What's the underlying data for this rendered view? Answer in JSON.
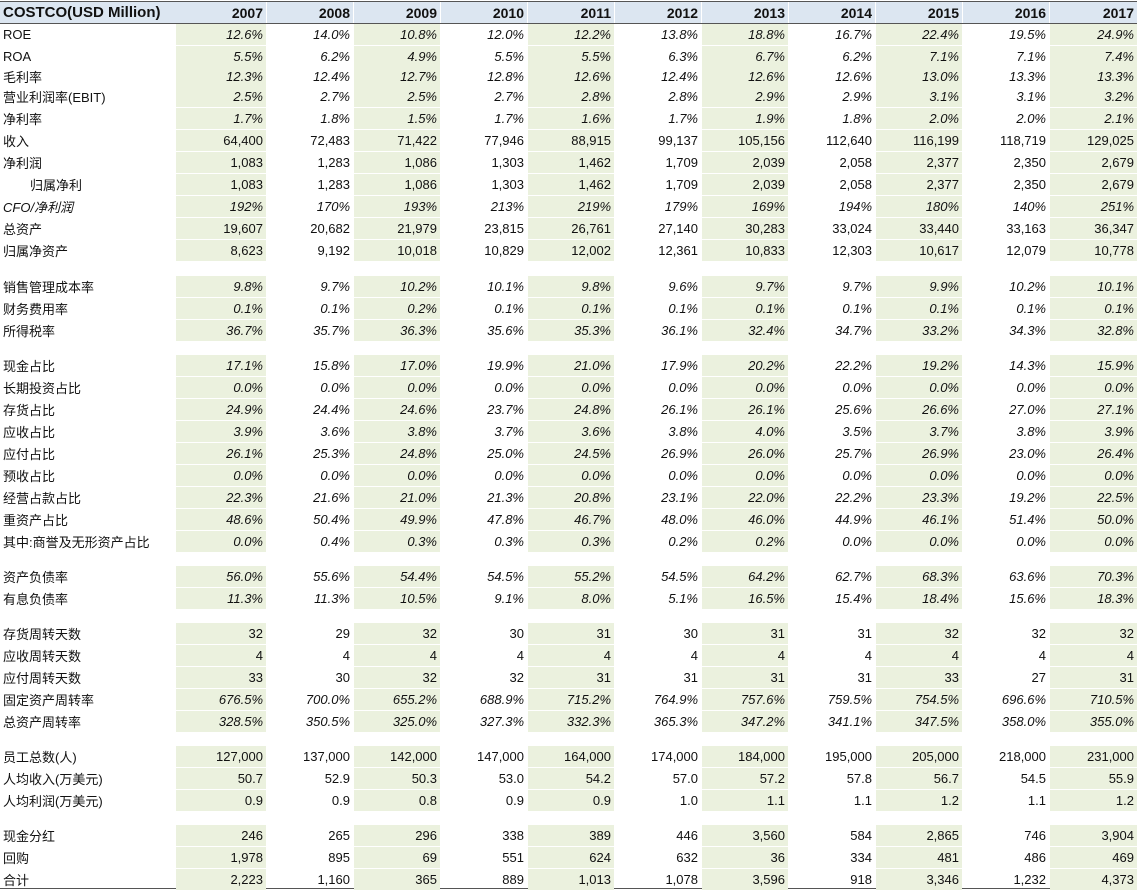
{
  "header": {
    "title": "COSTCO(USD Million)",
    "years": [
      "2007",
      "2008",
      "2009",
      "2010",
      "2011",
      "2012",
      "2013",
      "2014",
      "2015",
      "2016",
      "2017"
    ]
  },
  "rows": [
    {
      "label": "ROE",
      "italic": true,
      "values": [
        "12.6%",
        "14.0%",
        "10.8%",
        "12.0%",
        "12.2%",
        "13.8%",
        "18.8%",
        "16.7%",
        "22.4%",
        "19.5%",
        "24.9%"
      ]
    },
    {
      "label": "ROA",
      "italic": true,
      "values": [
        "5.5%",
        "6.2%",
        "4.9%",
        "5.5%",
        "5.5%",
        "6.3%",
        "6.7%",
        "6.2%",
        "7.1%",
        "7.1%",
        "7.4%"
      ]
    },
    {
      "label": "毛利率",
      "italic": true,
      "values": [
        "12.3%",
        "12.4%",
        "12.7%",
        "12.8%",
        "12.6%",
        "12.4%",
        "12.6%",
        "12.6%",
        "13.0%",
        "13.3%",
        "13.3%"
      ]
    },
    {
      "label": "营业利润率(EBIT)",
      "italic": true,
      "values": [
        "2.5%",
        "2.7%",
        "2.5%",
        "2.7%",
        "2.8%",
        "2.8%",
        "2.9%",
        "2.9%",
        "3.1%",
        "3.1%",
        "3.2%"
      ]
    },
    {
      "label": "净利率",
      "italic": true,
      "values": [
        "1.7%",
        "1.8%",
        "1.5%",
        "1.7%",
        "1.6%",
        "1.7%",
        "1.9%",
        "1.8%",
        "2.0%",
        "2.0%",
        "2.1%"
      ]
    },
    {
      "label": "收入",
      "italic": false,
      "values": [
        "64,400",
        "72,483",
        "71,422",
        "77,946",
        "88,915",
        "99,137",
        "105,156",
        "112,640",
        "116,199",
        "118,719",
        "129,025"
      ]
    },
    {
      "label": "净利润",
      "italic": false,
      "values": [
        "1,083",
        "1,283",
        "1,086",
        "1,303",
        "1,462",
        "1,709",
        "2,039",
        "2,058",
        "2,377",
        "2,350",
        "2,679"
      ]
    },
    {
      "label": "归属净利",
      "italic": false,
      "indent": true,
      "values": [
        "1,083",
        "1,283",
        "1,086",
        "1,303",
        "1,462",
        "1,709",
        "2,039",
        "2,058",
        "2,377",
        "2,350",
        "2,679"
      ]
    },
    {
      "label": "CFO/净利润",
      "italic": true,
      "labelItalic": true,
      "values": [
        "192%",
        "170%",
        "193%",
        "213%",
        "219%",
        "179%",
        "169%",
        "194%",
        "180%",
        "140%",
        "251%"
      ]
    },
    {
      "label": "总资产",
      "italic": false,
      "values": [
        "19,607",
        "20,682",
        "21,979",
        "23,815",
        "26,761",
        "27,140",
        "30,283",
        "33,024",
        "33,440",
        "33,163",
        "36,347"
      ]
    },
    {
      "label": "归属净资产",
      "italic": false,
      "values": [
        "8,623",
        "9,192",
        "10,018",
        "10,829",
        "12,002",
        "12,361",
        "10,833",
        "12,303",
        "10,617",
        "12,079",
        "10,778"
      ]
    },
    {
      "label": "销售管理成本率",
      "italic": true,
      "values": [
        "9.8%",
        "9.7%",
        "10.2%",
        "10.1%",
        "9.8%",
        "9.6%",
        "9.7%",
        "9.7%",
        "9.9%",
        "10.2%",
        "10.1%"
      ]
    },
    {
      "label": "财务费用率",
      "italic": true,
      "values": [
        "0.1%",
        "0.1%",
        "0.2%",
        "0.1%",
        "0.1%",
        "0.1%",
        "0.1%",
        "0.1%",
        "0.1%",
        "0.1%",
        "0.1%"
      ]
    },
    {
      "label": "所得税率",
      "italic": true,
      "values": [
        "36.7%",
        "35.7%",
        "36.3%",
        "35.6%",
        "35.3%",
        "36.1%",
        "32.4%",
        "34.7%",
        "33.2%",
        "34.3%",
        "32.8%"
      ]
    },
    {
      "label": "现金占比",
      "italic": true,
      "values": [
        "17.1%",
        "15.8%",
        "17.0%",
        "19.9%",
        "21.0%",
        "17.9%",
        "20.2%",
        "22.2%",
        "19.2%",
        "14.3%",
        "15.9%"
      ]
    },
    {
      "label": "长期投资占比",
      "italic": true,
      "values": [
        "0.0%",
        "0.0%",
        "0.0%",
        "0.0%",
        "0.0%",
        "0.0%",
        "0.0%",
        "0.0%",
        "0.0%",
        "0.0%",
        "0.0%"
      ]
    },
    {
      "label": "存货占比",
      "italic": true,
      "values": [
        "24.9%",
        "24.4%",
        "24.6%",
        "23.7%",
        "24.8%",
        "26.1%",
        "26.1%",
        "25.6%",
        "26.6%",
        "27.0%",
        "27.1%"
      ]
    },
    {
      "label": "应收占比",
      "italic": true,
      "values": [
        "3.9%",
        "3.6%",
        "3.8%",
        "3.7%",
        "3.6%",
        "3.8%",
        "4.0%",
        "3.5%",
        "3.7%",
        "3.8%",
        "3.9%"
      ]
    },
    {
      "label": "应付占比",
      "italic": true,
      "values": [
        "26.1%",
        "25.3%",
        "24.8%",
        "25.0%",
        "24.5%",
        "26.9%",
        "26.0%",
        "25.7%",
        "26.9%",
        "23.0%",
        "26.4%"
      ]
    },
    {
      "label": "预收占比",
      "italic": true,
      "values": [
        "0.0%",
        "0.0%",
        "0.0%",
        "0.0%",
        "0.0%",
        "0.0%",
        "0.0%",
        "0.0%",
        "0.0%",
        "0.0%",
        "0.0%"
      ]
    },
    {
      "label": "经营占款占比",
      "italic": true,
      "values": [
        "22.3%",
        "21.6%",
        "21.0%",
        "21.3%",
        "20.8%",
        "23.1%",
        "22.0%",
        "22.2%",
        "23.3%",
        "19.2%",
        "22.5%"
      ]
    },
    {
      "label": "重资产占比",
      "italic": true,
      "values": [
        "48.6%",
        "50.4%",
        "49.9%",
        "47.8%",
        "46.7%",
        "48.0%",
        "46.0%",
        "44.9%",
        "46.1%",
        "51.4%",
        "50.0%"
      ]
    },
    {
      "label": "其中:商誉及无形资产占比",
      "italic": true,
      "values": [
        "0.0%",
        "0.4%",
        "0.3%",
        "0.3%",
        "0.3%",
        "0.2%",
        "0.2%",
        "0.0%",
        "0.0%",
        "0.0%",
        "0.0%"
      ]
    },
    {
      "label": "资产负债率",
      "italic": true,
      "values": [
        "56.0%",
        "55.6%",
        "54.4%",
        "54.5%",
        "55.2%",
        "54.5%",
        "64.2%",
        "62.7%",
        "68.3%",
        "63.6%",
        "70.3%"
      ]
    },
    {
      "label": "有息负债率",
      "italic": true,
      "values": [
        "11.3%",
        "11.3%",
        "10.5%",
        "9.1%",
        "8.0%",
        "5.1%",
        "16.5%",
        "15.4%",
        "18.4%",
        "15.6%",
        "18.3%"
      ]
    },
    {
      "label": "存货周转天数",
      "italic": false,
      "values": [
        "32",
        "29",
        "32",
        "30",
        "31",
        "30",
        "31",
        "31",
        "32",
        "32",
        "32"
      ]
    },
    {
      "label": "应收周转天数",
      "italic": false,
      "values": [
        "4",
        "4",
        "4",
        "4",
        "4",
        "4",
        "4",
        "4",
        "4",
        "4",
        "4"
      ]
    },
    {
      "label": "应付周转天数",
      "italic": false,
      "values": [
        "33",
        "30",
        "32",
        "32",
        "31",
        "31",
        "31",
        "31",
        "33",
        "27",
        "31"
      ]
    },
    {
      "label": "固定资产周转率",
      "italic": true,
      "values": [
        "676.5%",
        "700.0%",
        "655.2%",
        "688.9%",
        "715.2%",
        "764.9%",
        "757.6%",
        "759.5%",
        "754.5%",
        "696.6%",
        "710.5%"
      ]
    },
    {
      "label": "总资产周转率",
      "italic": true,
      "values": [
        "328.5%",
        "350.5%",
        "325.0%",
        "327.3%",
        "332.3%",
        "365.3%",
        "347.2%",
        "341.1%",
        "347.5%",
        "358.0%",
        "355.0%"
      ]
    },
    {
      "label": "员工总数(人)",
      "italic": false,
      "values": [
        "127,000",
        "137,000",
        "142,000",
        "147,000",
        "164,000",
        "174,000",
        "184,000",
        "195,000",
        "205,000",
        "218,000",
        "231,000"
      ]
    },
    {
      "label": "人均收入(万美元)",
      "italic": false,
      "values": [
        "50.7",
        "52.9",
        "50.3",
        "53.0",
        "54.2",
        "57.0",
        "57.2",
        "57.8",
        "56.7",
        "54.5",
        "55.9"
      ]
    },
    {
      "label": "人均利润(万美元)",
      "italic": false,
      "values": [
        "0.9",
        "0.9",
        "0.8",
        "0.9",
        "0.9",
        "1.0",
        "1.1",
        "1.1",
        "1.2",
        "1.1",
        "1.2"
      ]
    },
    {
      "label": "现金分红",
      "italic": false,
      "values": [
        "246",
        "265",
        "296",
        "338",
        "389",
        "446",
        "3,560",
        "584",
        "2,865",
        "746",
        "3,904"
      ]
    },
    {
      "label": "回购",
      "italic": false,
      "values": [
        "1,978",
        "895",
        "69",
        "551",
        "624",
        "632",
        "36",
        "334",
        "481",
        "486",
        "469"
      ]
    },
    {
      "label": "合计",
      "italic": false,
      "values": [
        "2,223",
        "1,160",
        "365",
        "889",
        "1,013",
        "1,078",
        "3,596",
        "918",
        "3,346",
        "1,232",
        "4,373"
      ]
    }
  ],
  "colors": {
    "header_fill": "#dce6f1",
    "shade_fill": "#ebf1de"
  }
}
